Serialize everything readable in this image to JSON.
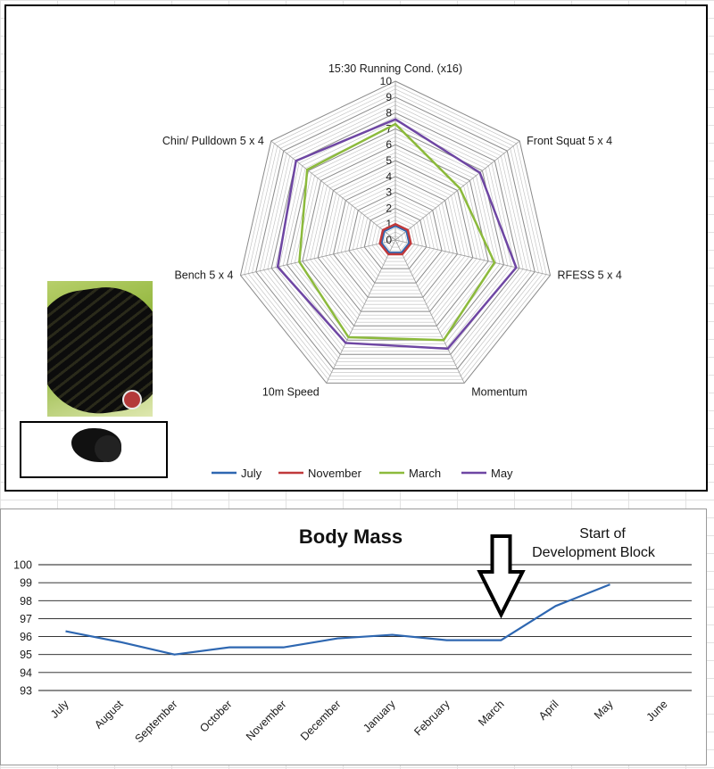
{
  "chart_data": [
    {
      "type": "radar",
      "title": "",
      "axes": [
        "15:30 Running Cond. (x16)",
        "Front Squat   5 x 4",
        "RFESS 5 x 4",
        "Momentum",
        "10m Speed",
        "Bench 5 x 4",
        "Chin/ Pulldown        5 x 4"
      ],
      "rlim": [
        0,
        10
      ],
      "r_ticks": [
        "0",
        "1",
        "2",
        "3",
        "4",
        "5",
        "6",
        "7",
        "8",
        "9",
        "10"
      ],
      "series": [
        {
          "name": "July",
          "color": "#2e67b1",
          "values": [
            0.9,
            0.9,
            0.9,
            0.9,
            0.9,
            0.9,
            0.9
          ]
        },
        {
          "name": "November",
          "color": "#c0393b",
          "values": [
            1,
            1,
            1,
            1,
            1,
            1,
            1
          ]
        },
        {
          "name": "March",
          "color": "#8cba3c",
          "values": [
            7.3,
            5.2,
            6.4,
            7.0,
            6.8,
            6.2,
            7.1
          ]
        },
        {
          "name": "May",
          "color": "#6e46a3",
          "values": [
            7.6,
            6.8,
            7.8,
            7.6,
            7.2,
            7.6,
            8.0
          ]
        }
      ],
      "legend_position": "bottom",
      "grid": true
    },
    {
      "type": "line",
      "title": "Body Mass",
      "categories": [
        "July",
        "August",
        "September",
        "October",
        "November",
        "December",
        "January",
        "February",
        "March",
        "April",
        "May",
        "June"
      ],
      "series": [
        {
          "name": "",
          "color": "#2e67b1",
          "values": [
            96.3,
            95.7,
            95.0,
            95.4,
            95.4,
            95.9,
            96.1,
            95.8,
            95.8,
            97.7,
            98.9,
            null
          ]
        }
      ],
      "ylim": [
        93,
        100
      ],
      "y_ticks": [
        "93",
        "94",
        "95",
        "96",
        "97",
        "98",
        "99",
        "100"
      ],
      "grid": true,
      "annotation": {
        "text_line1": "Start of",
        "text_line2": "Development Block",
        "points_to": "March"
      }
    }
  ]
}
